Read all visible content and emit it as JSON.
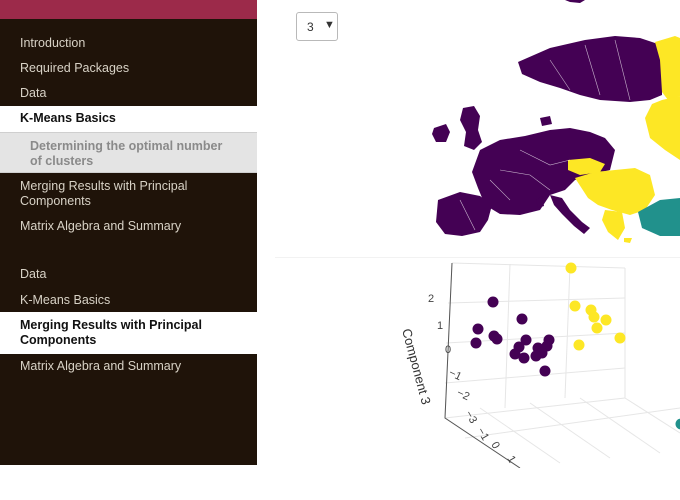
{
  "nav": {
    "items": [
      {
        "label": "Introduction"
      },
      {
        "label": "Required Packages"
      },
      {
        "label": "Data"
      },
      {
        "label": "K-Means Basics"
      },
      {
        "label": "Determining the optimal number of clusters"
      },
      {
        "label": "Merging Results with Principal Components"
      },
      {
        "label": "Matrix Algebra and Summary"
      },
      {
        "label": "Data"
      },
      {
        "label": "K-Means Basics"
      },
      {
        "label": "Merging Results with Principal Components"
      },
      {
        "label": "Matrix Algebra and Summary"
      }
    ]
  },
  "cluster_select": {
    "value": "3",
    "arrow": "▼"
  },
  "colors": {
    "sidebar_bg": "#1f1309",
    "accent_bar": "#9c2a4a",
    "cluster_purple": "#440154",
    "cluster_yellow": "#fde725",
    "cluster_teal": "#21918c"
  },
  "plot3d": {
    "z_axis_title": "Component 3",
    "z_ticks": [
      "2",
      "1",
      "0",
      "−1",
      "−2",
      "−3"
    ],
    "x_ticks": [
      "−1",
      "0",
      "1"
    ]
  }
}
